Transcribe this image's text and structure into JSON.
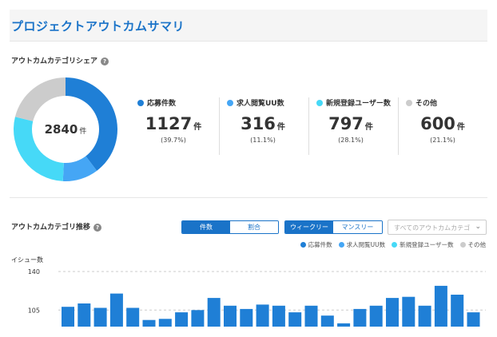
{
  "page": {
    "title": "プロジェクトアウトカムサマリ"
  },
  "share": {
    "title": "アウトカムカテゴリシェア",
    "help": "?",
    "total": "2840",
    "unit": "件",
    "items": [
      {
        "label": "応募件数",
        "value": "1127",
        "unit": "件",
        "pct": "(39.7%)",
        "fraction": 0.397,
        "color": "#1f7fd6"
      },
      {
        "label": "求人閲覧UU数",
        "value": "316",
        "unit": "件",
        "pct": "(11.1%)",
        "fraction": 0.111,
        "color": "#45a6f5"
      },
      {
        "label": "新規登録ユーザー数",
        "value": "797",
        "unit": "件",
        "pct": "(28.1%)",
        "fraction": 0.281,
        "color": "#46d9f7"
      },
      {
        "label": "その他",
        "value": "600",
        "unit": "件",
        "pct": "(21.1%)",
        "fraction": 0.211,
        "color": "#cccccc"
      }
    ]
  },
  "trend": {
    "title": "アウトカムカテゴリ推移",
    "help": "?",
    "mode_toggle": {
      "left": "件数",
      "right": "割合",
      "active": "left"
    },
    "period_toggle": {
      "left": "ウィークリー",
      "right": "マンスリー",
      "active": "left"
    },
    "category_select": {
      "placeholder": "すべてのアウトカムカテゴリ",
      "chevron": "⌄"
    },
    "legend": [
      {
        "label": "応募件数",
        "color": "#1f7fd6"
      },
      {
        "label": "求人閲覧UU数",
        "color": "#45a6f5"
      },
      {
        "label": "新規登録ユーザー数",
        "color": "#46d9f7"
      },
      {
        "label": "その他",
        "color": "#cccccc"
      }
    ]
  },
  "chart_data": {
    "type": "bar",
    "ylabel": "イシュー数",
    "yticks": [
      140,
      105
    ],
    "ylim": [
      90,
      140
    ],
    "bar_color": "#1f7fd6",
    "values": [
      108,
      111,
      107,
      120,
      107,
      96,
      97,
      103,
      105,
      116,
      109,
      106,
      110,
      109,
      103,
      109,
      100,
      93,
      106,
      109,
      116,
      117,
      109,
      127,
      119,
      103
    ]
  }
}
